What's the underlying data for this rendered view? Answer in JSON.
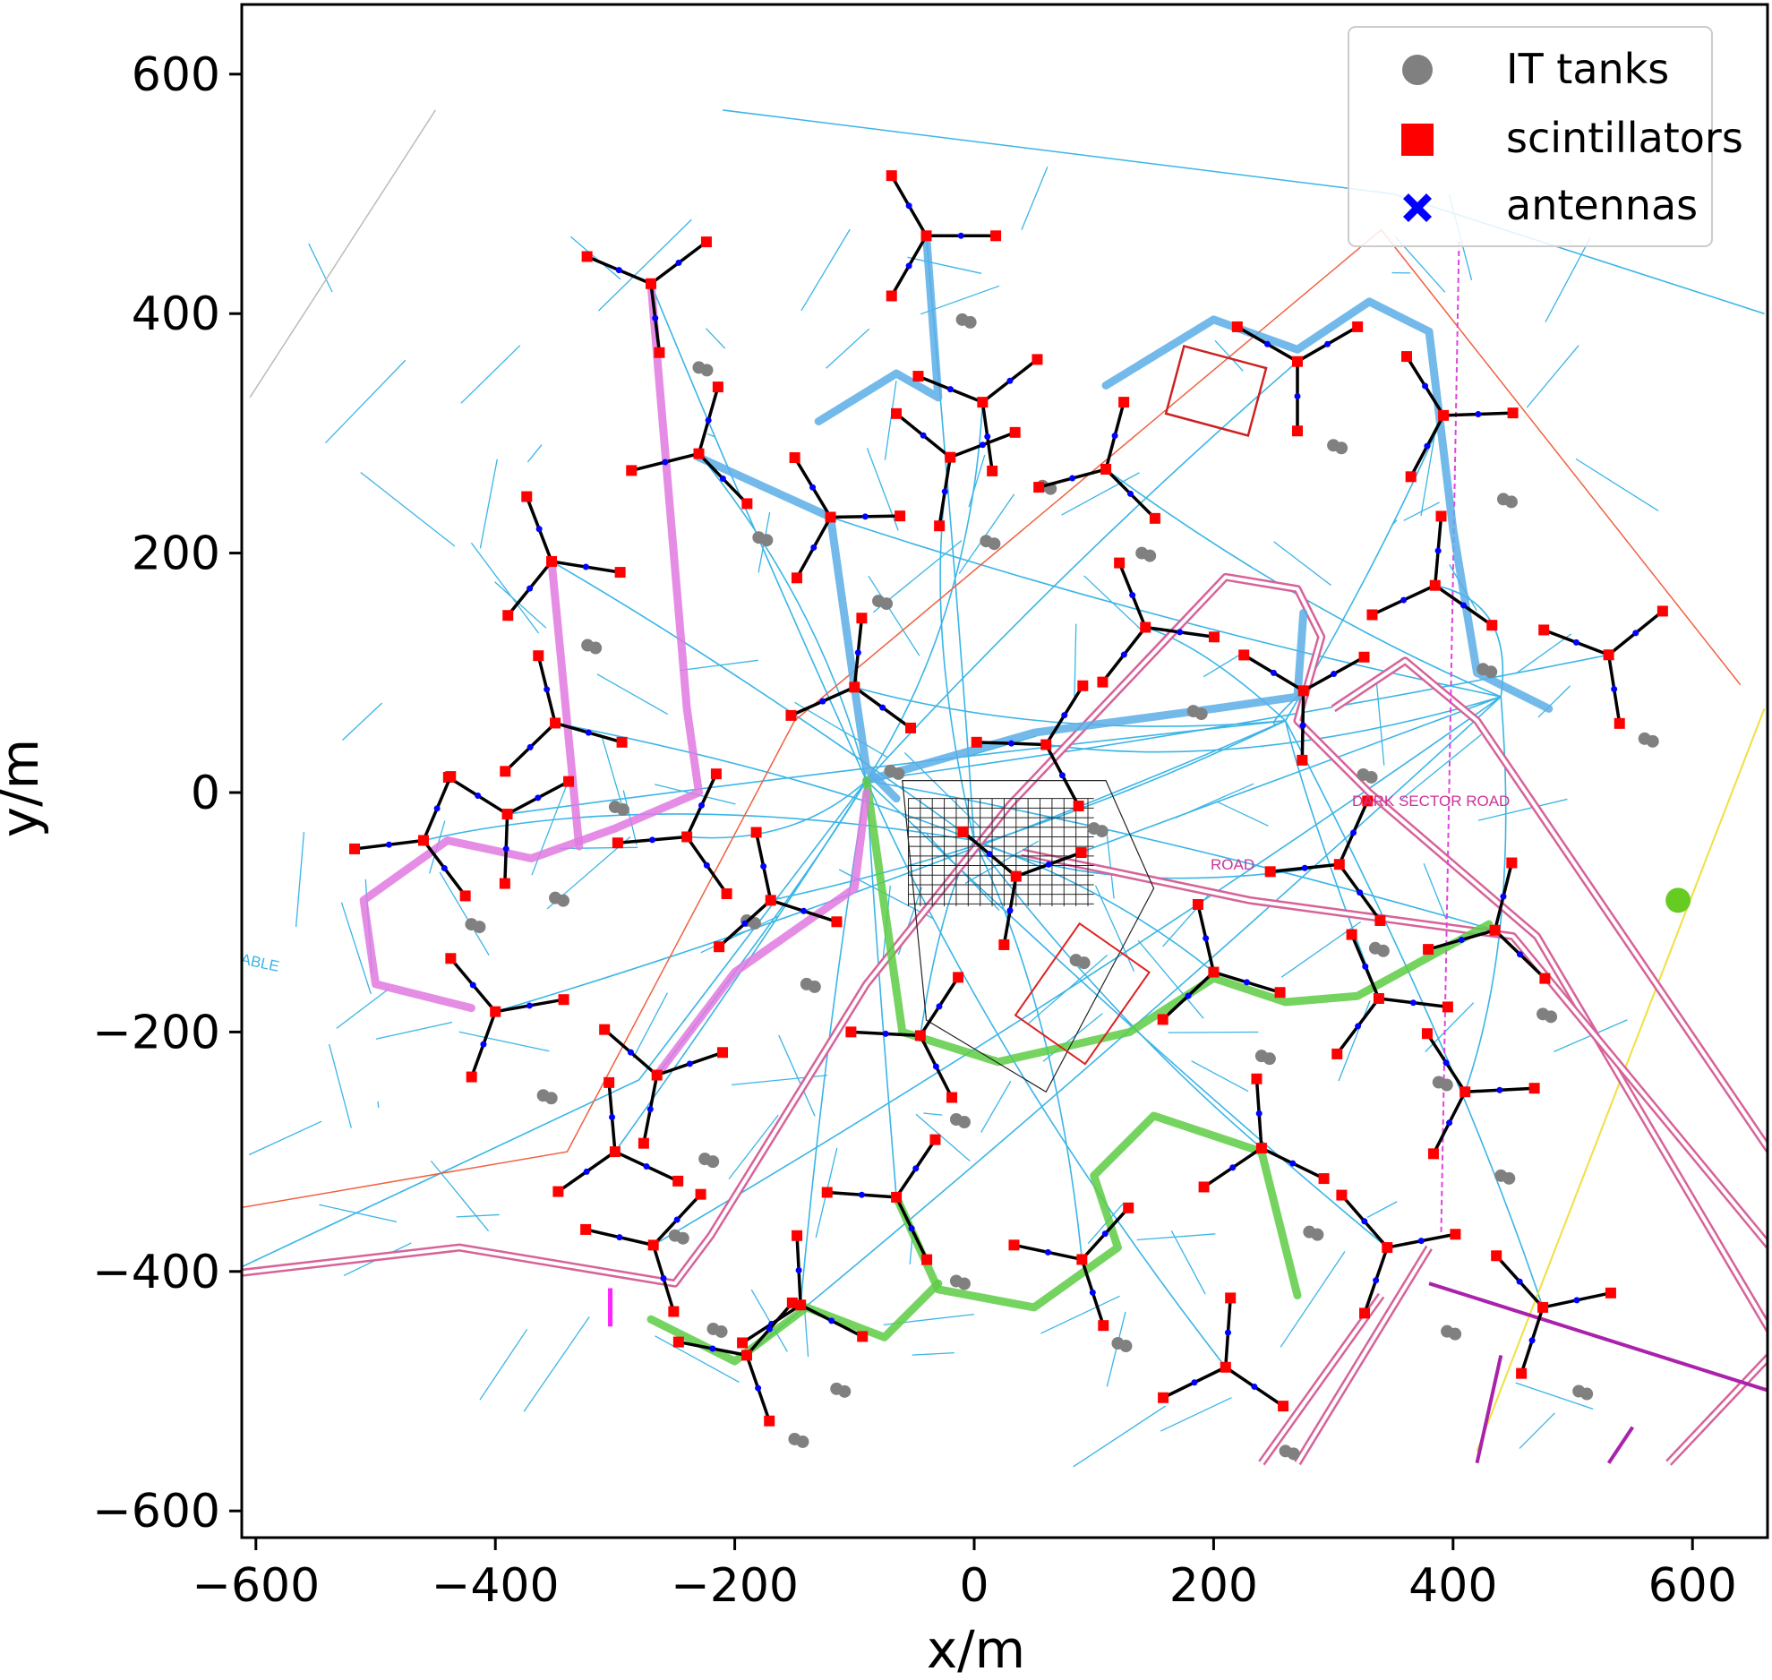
{
  "chart_data": {
    "type": "scatter",
    "title": "",
    "xlabel": "x/m",
    "ylabel": "y/m",
    "xlim": [
      -620,
      665
    ],
    "ylim": [
      -625,
      655
    ],
    "x_ticks": [
      -600,
      -400,
      -200,
      0,
      200,
      400,
      600
    ],
    "y_ticks": [
      -600,
      -400,
      -200,
      0,
      200,
      400,
      600
    ],
    "x_tick_labels": [
      "−600",
      "−400",
      "−200",
      "0",
      "200",
      "400",
      "600"
    ],
    "y_tick_labels": [
      "−600",
      "−400",
      "−200",
      "0",
      "200",
      "400",
      "600"
    ],
    "grid": false,
    "legend_position": "top-right",
    "series": [
      {
        "name": "IT tanks",
        "marker": "circle",
        "color": "#808080"
      },
      {
        "name": "scintillators",
        "marker": "square",
        "color": "#ff0000"
      },
      {
        "name": "antennas",
        "marker": "x",
        "color": "#0000ff"
      }
    ],
    "stations": [
      [
        -40,
        465
      ],
      [
        -270,
        425
      ],
      [
        -230,
        283
      ],
      [
        -353,
        193
      ],
      [
        -390,
        -18
      ],
      [
        -240,
        -37
      ],
      [
        -170,
        -90
      ],
      [
        -265,
        -236
      ],
      [
        -65,
        -338
      ],
      [
        -145,
        -428
      ],
      [
        -400,
        -183
      ],
      [
        -268,
        -378
      ],
      [
        -100,
        88
      ],
      [
        -120,
        230
      ],
      [
        7,
        326
      ],
      [
        110,
        270
      ],
      [
        143,
        138
      ],
      [
        275,
        85
      ],
      [
        305,
        -60
      ],
      [
        200,
        -150
      ],
      [
        35,
        -70
      ],
      [
        -45,
        -203
      ],
      [
        240,
        -297
      ],
      [
        345,
        -380
      ],
      [
        90,
        -390
      ],
      [
        385,
        173
      ],
      [
        392,
        315
      ],
      [
        530,
        115
      ],
      [
        435,
        -115
      ],
      [
        338,
        -172
      ],
      [
        270,
        360
      ],
      [
        -460,
        -40
      ],
      [
        -350,
        58
      ],
      [
        -20,
        280
      ],
      [
        60,
        40
      ],
      [
        -300,
        -300
      ],
      [
        475,
        -430
      ],
      [
        -190,
        -470
      ],
      [
        210,
        -480
      ],
      [
        410,
        -250
      ]
    ],
    "map_labels": [
      "DARK SECTOR ROAD",
      "ROAD",
      "ABLE"
    ],
    "colors": {
      "cable": "#3ab5e6",
      "road": "#d6639a",
      "scintillator": "#ff0000",
      "antenna": "#0000ff",
      "tank": "#808080",
      "station_arm": "#000000",
      "trench_blue": "#5aaee8",
      "trench_green": "#5dcc44",
      "trench_purple": "#e079e0",
      "dark_sector_label": "#cc3399"
    }
  }
}
